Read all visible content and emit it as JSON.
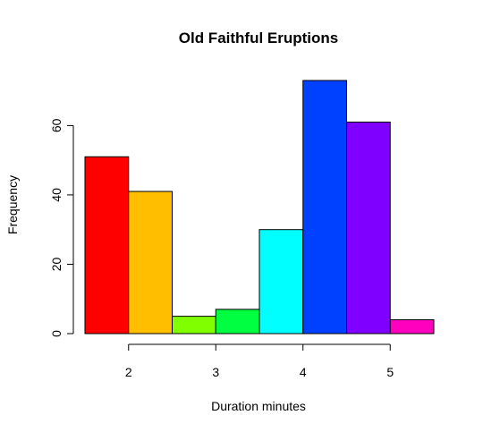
{
  "chart_data": {
    "type": "bar",
    "title": "Old Faithful Eruptions",
    "xlabel": "Duration minutes",
    "ylabel": "Frequency",
    "bins": [
      {
        "start": 1.5,
        "end": 2.0,
        "count": 51
      },
      {
        "start": 2.0,
        "end": 2.5,
        "count": 41
      },
      {
        "start": 2.5,
        "end": 3.0,
        "count": 5
      },
      {
        "start": 3.0,
        "end": 3.5,
        "count": 7
      },
      {
        "start": 3.5,
        "end": 4.0,
        "count": 30
      },
      {
        "start": 4.0,
        "end": 4.5,
        "count": 73
      },
      {
        "start": 4.5,
        "end": 5.0,
        "count": 61
      },
      {
        "start": 5.0,
        "end": 5.5,
        "count": 4
      }
    ],
    "colors": [
      "#ff0000",
      "#ffbf00",
      "#80ff00",
      "#00ff40",
      "#00ffff",
      "#0040ff",
      "#8000ff",
      "#ff00bf"
    ],
    "border_color": "#000000",
    "xlim": [
      1.5,
      5.5
    ],
    "ylim": [
      0,
      73
    ],
    "x_ticks": [
      2,
      3,
      4,
      5
    ],
    "x_tick_labels": [
      "2",
      "3",
      "4",
      "5"
    ],
    "y_ticks": [
      0,
      20,
      40,
      60
    ],
    "y_tick_labels": [
      "0",
      "20",
      "40",
      "60"
    ],
    "grid": false,
    "legend": "none"
  }
}
